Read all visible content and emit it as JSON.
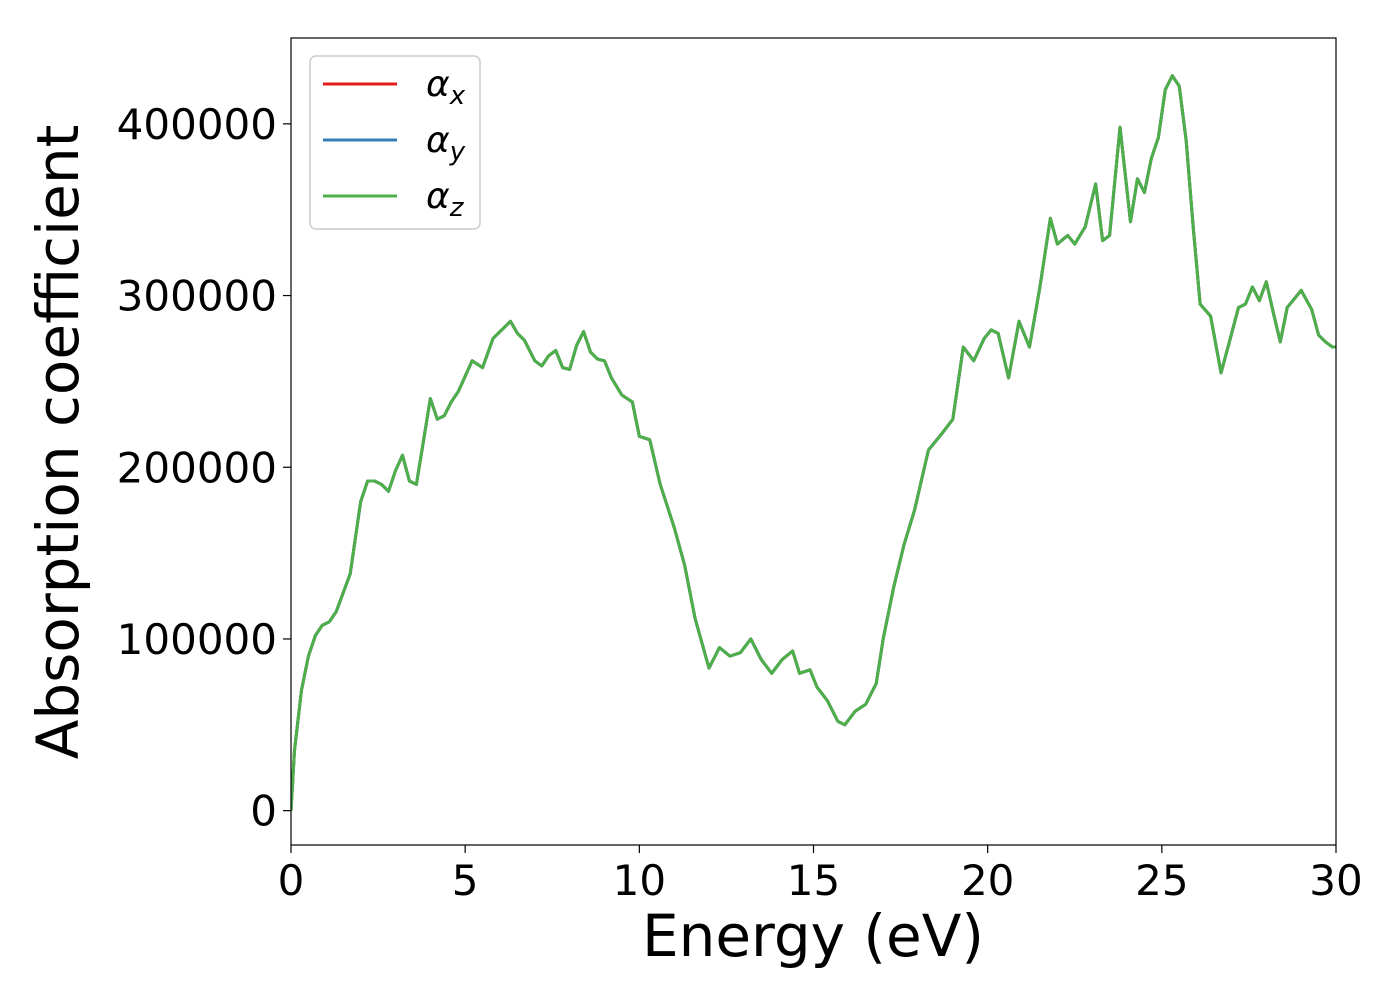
{
  "chart_data": {
    "type": "line",
    "title": "",
    "xlabel": "Energy (eV)",
    "ylabel": "Absorption coefficient",
    "xlim": [
      0,
      30
    ],
    "ylim": [
      -20000,
      450000
    ],
    "xticks": [
      0,
      5,
      10,
      15,
      20,
      25,
      30
    ],
    "xtick_labels": [
      "0",
      "5",
      "10",
      "15",
      "20",
      "25",
      "30"
    ],
    "yticks": [
      0,
      100000,
      200000,
      300000,
      400000
    ],
    "ytick_labels": [
      "0",
      "100000",
      "200000",
      "300000",
      "400000"
    ],
    "grid": false,
    "legend_position": "top-left",
    "legend": [
      {
        "symbol": "α",
        "sub": "x",
        "color": "#e41a1c"
      },
      {
        "symbol": "α",
        "sub": "y",
        "color": "#377eb8"
      },
      {
        "symbol": "α",
        "sub": "z",
        "color": "#4daf4a"
      }
    ],
    "note": "The three series coincide; only the last (α_z, green) is visible on top.",
    "x": [
      0,
      0.1,
      0.3,
      0.5,
      0.7,
      0.9,
      1.1,
      1.3,
      1.5,
      1.7,
      2.0,
      2.2,
      2.4,
      2.6,
      2.8,
      3.0,
      3.2,
      3.4,
      3.6,
      3.8,
      4.0,
      4.2,
      4.4,
      4.6,
      4.8,
      5.0,
      5.2,
      5.5,
      5.8,
      6.1,
      6.3,
      6.5,
      6.7,
      7.0,
      7.2,
      7.4,
      7.6,
      7.8,
      8.0,
      8.2,
      8.4,
      8.6,
      8.8,
      9.0,
      9.2,
      9.5,
      9.8,
      10.0,
      10.3,
      10.6,
      11.0,
      11.3,
      11.6,
      12.0,
      12.3,
      12.6,
      12.9,
      13.2,
      13.5,
      13.8,
      14.1,
      14.4,
      14.6,
      14.9,
      15.1,
      15.4,
      15.7,
      15.9,
      16.2,
      16.5,
      16.8,
      17.0,
      17.3,
      17.6,
      17.9,
      18.3,
      18.7,
      19.0,
      19.3,
      19.6,
      19.9,
      20.1,
      20.3,
      20.6,
      20.9,
      21.2,
      21.5,
      21.8,
      22.0,
      22.3,
      22.5,
      22.8,
      23.1,
      23.3,
      23.5,
      23.8,
      24.1,
      24.3,
      24.5,
      24.7,
      24.9,
      25.1,
      25.3,
      25.5,
      25.7,
      25.9,
      26.1,
      26.4,
      26.7,
      26.9,
      27.2,
      27.4,
      27.6,
      27.8,
      28.0,
      28.2,
      28.4,
      28.6,
      28.8,
      29.0,
      29.3,
      29.5,
      29.7,
      29.9,
      30.0
    ],
    "series": [
      {
        "values": [
          0,
          35000,
          70000,
          90000,
          102000,
          108000,
          110000,
          116000,
          127000,
          138000,
          180000,
          192000,
          192000,
          190000,
          186000,
          198000,
          207000,
          192000,
          190000,
          215000,
          240000,
          228000,
          230000,
          238000,
          244000,
          253000,
          262000,
          258000,
          275000,
          281000,
          285000,
          278000,
          274000,
          262000,
          259000,
          265000,
          268000,
          258000,
          257000,
          271000,
          279000,
          267000,
          263000,
          262000,
          252000,
          242000,
          238000,
          218000,
          216000,
          190000,
          165000,
          143000,
          112000,
          83000,
          95000,
          90000,
          92000,
          100000,
          88000,
          80000,
          88000,
          93000,
          80000,
          82000,
          72000,
          64000,
          52000,
          50000,
          58000,
          62000,
          74000,
          100000,
          130000,
          155000,
          175000,
          210000,
          220000,
          228000,
          270000,
          262000,
          275000,
          280000,
          278000,
          252000,
          285000,
          270000,
          305000,
          345000,
          330000,
          335000,
          330000,
          340000,
          365000,
          332000,
          335000,
          398000,
          343000,
          368000,
          360000,
          380000,
          392000,
          420000,
          428000,
          422000,
          390000,
          340000,
          295000,
          288000,
          255000,
          270000,
          293000,
          295000,
          305000,
          297000,
          308000,
          290000,
          273000,
          293000,
          298000,
          303000,
          292000,
          277000,
          273000,
          270000,
          270000
        ]
      },
      {
        "values": [
          0,
          35000,
          70000,
          90000,
          102000,
          108000,
          110000,
          116000,
          127000,
          138000,
          180000,
          192000,
          192000,
          190000,
          186000,
          198000,
          207000,
          192000,
          190000,
          215000,
          240000,
          228000,
          230000,
          238000,
          244000,
          253000,
          262000,
          258000,
          275000,
          281000,
          285000,
          278000,
          274000,
          262000,
          259000,
          265000,
          268000,
          258000,
          257000,
          271000,
          279000,
          267000,
          263000,
          262000,
          252000,
          242000,
          238000,
          218000,
          216000,
          190000,
          165000,
          143000,
          112000,
          83000,
          95000,
          90000,
          92000,
          100000,
          88000,
          80000,
          88000,
          93000,
          80000,
          82000,
          72000,
          64000,
          52000,
          50000,
          58000,
          62000,
          74000,
          100000,
          130000,
          155000,
          175000,
          210000,
          220000,
          228000,
          270000,
          262000,
          275000,
          280000,
          278000,
          252000,
          285000,
          270000,
          305000,
          345000,
          330000,
          335000,
          330000,
          340000,
          365000,
          332000,
          335000,
          398000,
          343000,
          368000,
          360000,
          380000,
          392000,
          420000,
          428000,
          422000,
          390000,
          340000,
          295000,
          288000,
          255000,
          270000,
          293000,
          295000,
          305000,
          297000,
          308000,
          290000,
          273000,
          293000,
          298000,
          303000,
          292000,
          277000,
          273000,
          270000,
          270000
        ]
      },
      {
        "values": [
          0,
          35000,
          70000,
          90000,
          102000,
          108000,
          110000,
          116000,
          127000,
          138000,
          180000,
          192000,
          192000,
          190000,
          186000,
          198000,
          207000,
          192000,
          190000,
          215000,
          240000,
          228000,
          230000,
          238000,
          244000,
          253000,
          262000,
          258000,
          275000,
          281000,
          285000,
          278000,
          274000,
          262000,
          259000,
          265000,
          268000,
          258000,
          257000,
          271000,
          279000,
          267000,
          263000,
          262000,
          252000,
          242000,
          238000,
          218000,
          216000,
          190000,
          165000,
          143000,
          112000,
          83000,
          95000,
          90000,
          92000,
          100000,
          88000,
          80000,
          88000,
          93000,
          80000,
          82000,
          72000,
          64000,
          52000,
          50000,
          58000,
          62000,
          74000,
          100000,
          130000,
          155000,
          175000,
          210000,
          220000,
          228000,
          270000,
          262000,
          275000,
          280000,
          278000,
          252000,
          285000,
          270000,
          305000,
          345000,
          330000,
          335000,
          330000,
          340000,
          365000,
          332000,
          335000,
          398000,
          343000,
          368000,
          360000,
          380000,
          392000,
          420000,
          428000,
          422000,
          390000,
          340000,
          295000,
          288000,
          255000,
          270000,
          293000,
          295000,
          305000,
          297000,
          308000,
          290000,
          273000,
          293000,
          298000,
          303000,
          292000,
          277000,
          273000,
          270000,
          270000
        ]
      }
    ]
  }
}
